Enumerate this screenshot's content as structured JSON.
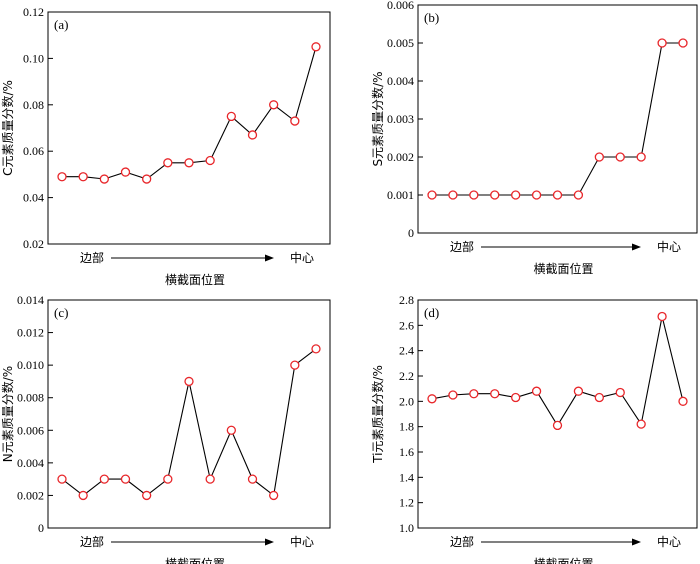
{
  "chart_data": [
    {
      "type": "line",
      "panel_label": "(a)",
      "ylabel": "C元素质量分数/%",
      "ylim": [
        0.02,
        0.12
      ],
      "yticks": [
        "0.02",
        "0.04",
        "0.06",
        "0.08",
        "0.10",
        "0.12"
      ],
      "x_start_label": "边部",
      "x_end_label": "中心",
      "xlabel": "横截面位置",
      "values": [
        0.049,
        0.049,
        0.048,
        0.051,
        0.048,
        0.055,
        0.055,
        0.056,
        0.075,
        0.067,
        0.08,
        0.073,
        0.105
      ],
      "marker_color": "#e8262a",
      "line_color": "#000000"
    },
    {
      "type": "line",
      "panel_label": "(b)",
      "ylabel": "S元素质量分数/%",
      "ylim": [
        0,
        0.006
      ],
      "yticks": [
        "0",
        "0.001",
        "0.002",
        "0.003",
        "0.004",
        "0.005",
        "0.006"
      ],
      "x_start_label": "边部",
      "x_end_label": "中心",
      "xlabel": "横截面位置",
      "values": [
        0.001,
        0.001,
        0.001,
        0.001,
        0.001,
        0.001,
        0.001,
        0.001,
        0.002,
        0.002,
        0.002,
        0.005,
        0.005
      ],
      "marker_color": "#e8262a",
      "line_color": "#000000"
    },
    {
      "type": "line",
      "panel_label": "(c)",
      "ylabel": "N元素质量分数/%",
      "ylim": [
        0,
        0.014
      ],
      "yticks": [
        "0",
        "0.002",
        "0.004",
        "0.006",
        "0.008",
        "0.010",
        "0.012",
        "0.014"
      ],
      "x_start_label": "边部",
      "x_end_label": "中心",
      "xlabel": "横截面位置",
      "values": [
        0.003,
        0.002,
        0.003,
        0.003,
        0.002,
        0.003,
        0.009,
        0.003,
        0.006,
        0.003,
        0.002,
        0.01,
        0.011
      ],
      "marker_color": "#e8262a",
      "line_color": "#000000"
    },
    {
      "type": "line",
      "panel_label": "(d)",
      "ylabel": "Ti元素质量分数/%",
      "ylim": [
        1.0,
        2.8
      ],
      "yticks": [
        "1.0",
        "1.2",
        "1.4",
        "1.6",
        "1.8",
        "2.0",
        "2.2",
        "2.4",
        "2.6",
        "2.8"
      ],
      "x_start_label": "边部",
      "x_end_label": "中心",
      "xlabel": "横截面位置",
      "values": [
        2.02,
        2.05,
        2.06,
        2.06,
        2.03,
        2.08,
        1.81,
        2.08,
        2.03,
        2.07,
        1.82,
        2.67,
        2.0
      ],
      "marker_color": "#e8262a",
      "line_color": "#000000"
    }
  ]
}
